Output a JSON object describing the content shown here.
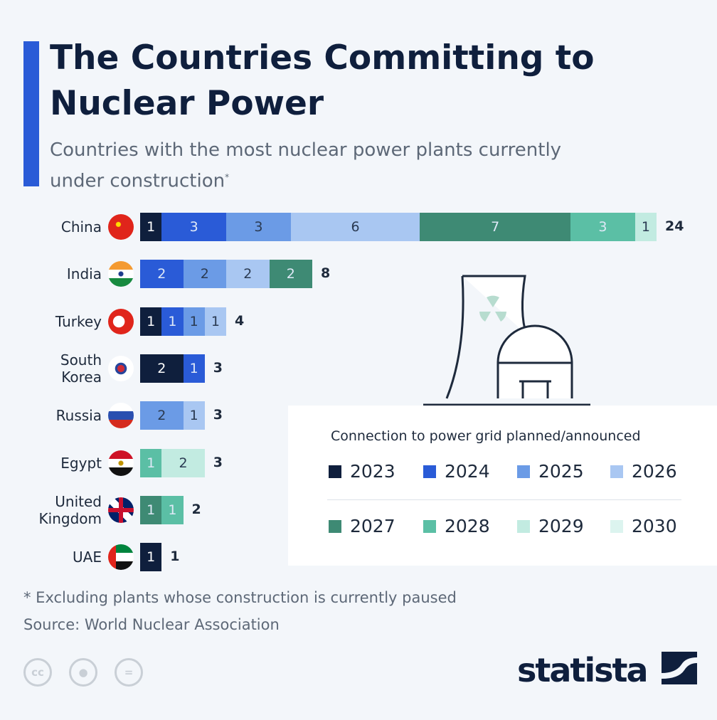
{
  "title": "The Countries Committing to Nuclear Power",
  "subtitle": "Countries with the most nuclear power plants currently under construction",
  "subtitle_mark": "*",
  "footnote": "* Excluding plants whose construction is currently paused",
  "source": "Source: World Nuclear Association",
  "brand": "statista",
  "license_icons": [
    "cc",
    "by",
    "nd"
  ],
  "chart_data": {
    "type": "bar",
    "orientation": "horizontal",
    "stacked": true,
    "categories": [
      "China",
      "India",
      "Turkey",
      "South Korea",
      "Russia",
      "Egypt",
      "United Kingdom",
      "UAE"
    ],
    "totals": [
      24,
      8,
      4,
      3,
      3,
      3,
      2,
      1
    ],
    "legend_title": "Connection to power grid planned/announced",
    "legend_placement": "bottom-right",
    "series": [
      {
        "name": "2023",
        "color": "#0f1f3d",
        "values": [
          1,
          0,
          1,
          2,
          0,
          0,
          0,
          1
        ]
      },
      {
        "name": "2024",
        "color": "#2a5bd7",
        "values": [
          3,
          2,
          1,
          1,
          0,
          0,
          0,
          0
        ]
      },
      {
        "name": "2025",
        "color": "#6b9be6",
        "values": [
          3,
          2,
          1,
          0,
          2,
          0,
          0,
          0
        ]
      },
      {
        "name": "2026",
        "color": "#a9c7f2",
        "values": [
          6,
          2,
          1,
          0,
          1,
          0,
          0,
          0
        ]
      },
      {
        "name": "2027",
        "color": "#3e8a74",
        "values": [
          7,
          2,
          0,
          0,
          0,
          0,
          1,
          0
        ]
      },
      {
        "name": "2028",
        "color": "#5bbfa5",
        "values": [
          3,
          0,
          0,
          0,
          0,
          1,
          1,
          0
        ]
      },
      {
        "name": "2029",
        "color": "#c2ebe1",
        "values": [
          1,
          0,
          0,
          0,
          0,
          2,
          0,
          0
        ]
      },
      {
        "name": "2030",
        "color": "#dcf4ef",
        "values": [
          0,
          0,
          0,
          0,
          0,
          0,
          0,
          0
        ]
      }
    ],
    "xlabel": "",
    "ylabel": ""
  }
}
